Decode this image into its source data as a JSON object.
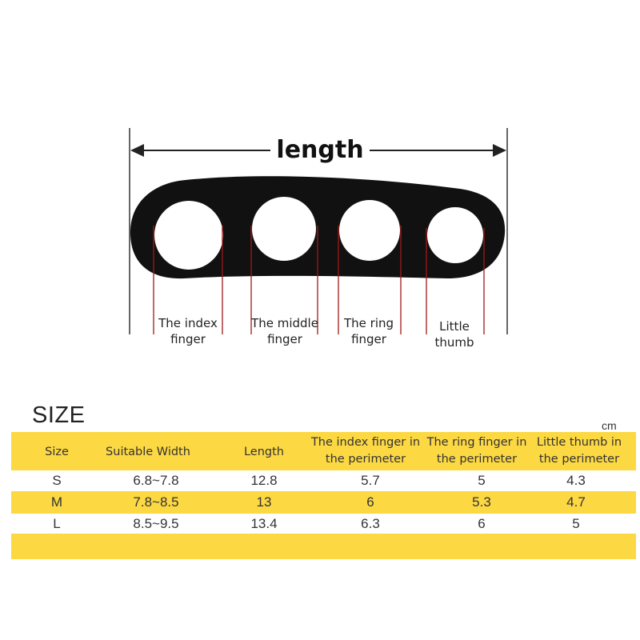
{
  "diagram": {
    "dimension_label": "length",
    "finger_labels": [
      {
        "text": "The index\nfinger"
      },
      {
        "text": "The middle\nfinger"
      },
      {
        "text": "The ring\nfinger"
      },
      {
        "text": "Little\nthumb"
      }
    ],
    "colors": {
      "ring": "#111111",
      "guide_line": "#a01818",
      "dimension_line": "#222222"
    }
  },
  "size_table": {
    "heading": "SIZE",
    "unit": "cm",
    "band_color": "#FCD843",
    "columns": [
      "Size",
      "Suitable Width",
      "Length",
      "The index finger in\nthe perimeter",
      "The ring finger in\nthe perimeter",
      "Little thumb in\nthe perimeter"
    ],
    "rows": [
      [
        "S",
        "6.8~7.8",
        "12.8",
        "5.7",
        "5",
        "4.3"
      ],
      [
        "M",
        "7.8~8.5",
        "13",
        "6",
        "5.3",
        "4.7"
      ],
      [
        "L",
        "8.5~9.5",
        "13.4",
        "6.3",
        "6",
        "5"
      ]
    ]
  }
}
